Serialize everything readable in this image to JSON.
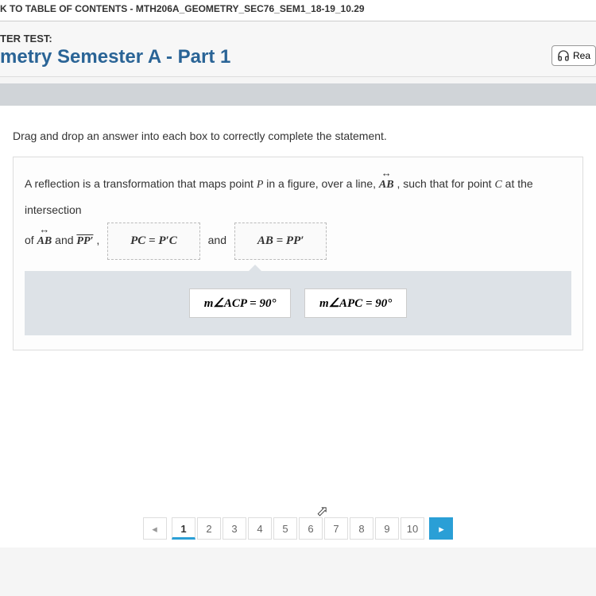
{
  "topbar": {
    "breadcrumb": "K TO TABLE OF CONTENTS - MTH206A_GEOMETRY_SEC76_SEM1_18-19_10.29"
  },
  "header": {
    "label": "TER TEST:",
    "title": "metry Semester A - Part 1",
    "readspeaker": "Rea"
  },
  "question": {
    "instruction": "Drag and drop an answer into each box to correctly complete the statement.",
    "text1_a": "A reflection is a transformation that maps point ",
    "p_var": "P",
    "text1_b": " in a figure, over a line, ",
    "ab_line": "AB",
    "text1_c": " , such that for point ",
    "c_var": "C",
    "text1_d": " at the intersection",
    "text2_a": "of ",
    "ab_line2": "AB",
    "text2_b": " and ",
    "pp_seg": "PP′",
    "text2_c": " ,",
    "drop1": "PC = P′C",
    "text2_d": "and",
    "drop2": "AB = PP′"
  },
  "answers": {
    "chip1": "m∠ACP = 90°",
    "chip2": "m∠APC = 90°"
  },
  "pagination": {
    "prev": "◂",
    "pages": [
      "1",
      "2",
      "3",
      "4",
      "5",
      "6",
      "7",
      "8",
      "9",
      "10"
    ],
    "next": "▸",
    "active": 1
  },
  "colors": {
    "title": "#2a6496",
    "band": "#d0d4d8",
    "bank": "#dde2e7",
    "accent": "#2a9fd6"
  }
}
